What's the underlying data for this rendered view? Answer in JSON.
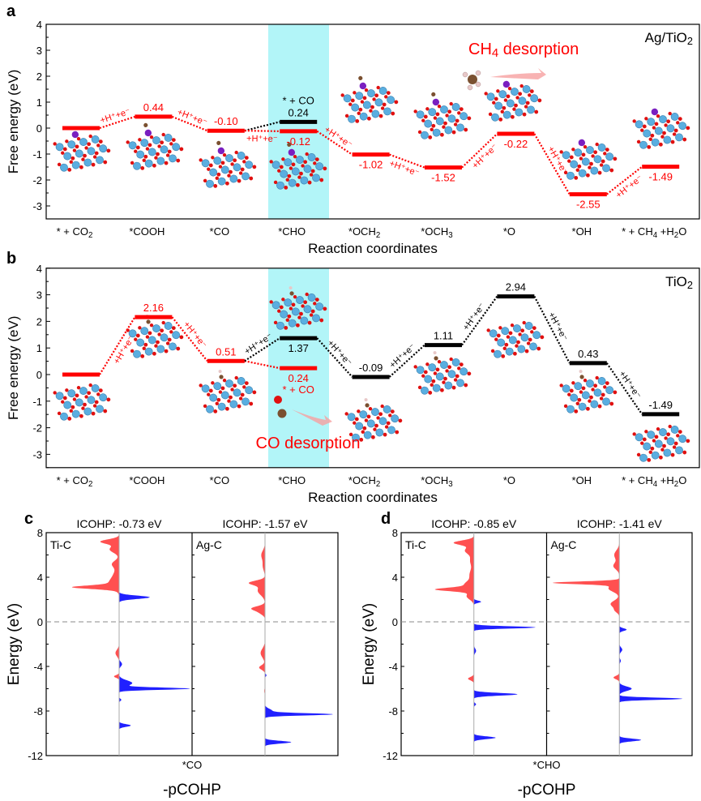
{
  "colors": {
    "red": "#ff0000",
    "black": "#000000",
    "band": "#b2f5f8",
    "bonding": "#2020ff",
    "antibonding": "#ff5050",
    "atom_ti": "#5aaee0",
    "atom_o": "#e01010",
    "atom_ag": "#7a1fc0",
    "atom_c": "#7a5030",
    "atom_h": "#e8c8c8"
  },
  "chart_data": [
    {
      "type": "line",
      "panel": "a",
      "title": "Ag/TiO2",
      "xlabel": "Reaction coordinates",
      "ylabel": "Free energy (eV)",
      "ylim": [
        -3.5,
        4
      ],
      "yticks": [
        4,
        3,
        2,
        1,
        0,
        -1,
        -2,
        -3
      ],
      "categories": [
        "* + CO2",
        "*COOH",
        "*CO",
        "*CHO",
        "*OCH2",
        "*OCH3",
        "*O",
        "*OH",
        "* + CH4 +H2O"
      ],
      "highlight_category": 3,
      "levels": [
        {
          "cat": 0,
          "value": 0,
          "label": "",
          "color": "red",
          "pos": "above"
        },
        {
          "cat": 1,
          "value": 0.44,
          "label": "0.44",
          "color": "red",
          "pos": "above"
        },
        {
          "cat": 2,
          "value": -0.1,
          "label": "-0.10",
          "color": "red",
          "pos": "above"
        },
        {
          "cat": 3,
          "value": 0.24,
          "label": "0.24",
          "color": "black",
          "pos": "above",
          "extra": "* + CO"
        },
        {
          "cat": 3,
          "value": -0.12,
          "label": "-0.12",
          "color": "red",
          "pos": "below"
        },
        {
          "cat": 4,
          "value": -1.02,
          "label": "-1.02",
          "color": "red",
          "pos": "below"
        },
        {
          "cat": 5,
          "value": -1.52,
          "label": "-1.52",
          "color": "red",
          "pos": "below"
        },
        {
          "cat": 6,
          "value": -0.22,
          "label": "-0.22",
          "color": "red",
          "pos": "below"
        },
        {
          "cat": 7,
          "value": -2.55,
          "label": "-2.55",
          "color": "red",
          "pos": "below"
        },
        {
          "cat": 8,
          "value": -1.49,
          "label": "-1.49",
          "color": "red",
          "pos": "below"
        }
      ],
      "steps": [
        {
          "from": [
            0,
            0
          ],
          "to": [
            1,
            0.44
          ],
          "color": "red",
          "label": "+H⁺+e⁻",
          "side": "above"
        },
        {
          "from": [
            1,
            0.44
          ],
          "to": [
            2,
            -0.1
          ],
          "color": "red",
          "label": "+H⁺+e⁻",
          "side": "above"
        },
        {
          "from": [
            2,
            -0.1
          ],
          "to": [
            3,
            0.24
          ],
          "color": "black",
          "label": "",
          "side": "above"
        },
        {
          "from": [
            2,
            -0.1
          ],
          "to": [
            3,
            -0.12
          ],
          "color": "red",
          "label": "+H⁺+e⁻",
          "side": "below"
        },
        {
          "from": [
            3,
            -0.12
          ],
          "to": [
            4,
            -1.02
          ],
          "color": "red",
          "label": "+H⁺+e⁻",
          "side": "above"
        },
        {
          "from": [
            4,
            -1.02
          ],
          "to": [
            5,
            -1.52
          ],
          "color": "red",
          "label": "+H⁺+e⁻",
          "side": "below"
        },
        {
          "from": [
            5,
            -1.52
          ],
          "to": [
            6,
            -0.22
          ],
          "color": "red",
          "label": "+H⁺+e⁻",
          "side": "below"
        },
        {
          "from": [
            6,
            -0.22
          ],
          "to": [
            7,
            -2.55
          ],
          "color": "red",
          "label": "+H⁺+e⁻",
          "side": "above"
        },
        {
          "from": [
            7,
            -2.55
          ],
          "to": [
            8,
            -1.49
          ],
          "color": "red",
          "label": "+H⁺+e⁻",
          "side": "below"
        }
      ],
      "annotation": "CH4 desorption"
    },
    {
      "type": "line",
      "panel": "b",
      "title": "TiO2",
      "xlabel": "Reaction coordinates",
      "ylabel": "Free energy (eV)",
      "ylim": [
        -3.5,
        4
      ],
      "yticks": [
        4,
        3,
        2,
        1,
        0,
        -1,
        -2,
        -3
      ],
      "categories": [
        "* + CO2",
        "*COOH",
        "*CO",
        "*CHO",
        "*OCH2",
        "*OCH3",
        "*O",
        "*OH",
        "* + CH4 +H2O"
      ],
      "highlight_category": 3,
      "levels": [
        {
          "cat": 0,
          "value": 0,
          "label": "",
          "color": "red",
          "pos": "above"
        },
        {
          "cat": 1,
          "value": 2.16,
          "label": "2.16",
          "color": "red",
          "pos": "above"
        },
        {
          "cat": 2,
          "value": 0.51,
          "label": "0.51",
          "color": "red",
          "pos": "above"
        },
        {
          "cat": 3,
          "value": 0.24,
          "label": "0.24",
          "color": "red",
          "pos": "below",
          "extra": "* + CO"
        },
        {
          "cat": 3,
          "value": 1.37,
          "label": "1.37",
          "color": "black",
          "pos": "below"
        },
        {
          "cat": 4,
          "value": -0.09,
          "label": "-0.09",
          "color": "black",
          "pos": "above"
        },
        {
          "cat": 5,
          "value": 1.11,
          "label": "1.11",
          "color": "black",
          "pos": "above"
        },
        {
          "cat": 6,
          "value": 2.94,
          "label": "2.94",
          "color": "black",
          "pos": "above"
        },
        {
          "cat": 7,
          "value": 0.43,
          "label": "0.43",
          "color": "black",
          "pos": "above"
        },
        {
          "cat": 8,
          "value": -1.49,
          "label": "-1.49",
          "color": "black",
          "pos": "above"
        }
      ],
      "steps": [
        {
          "from": [
            0,
            0
          ],
          "to": [
            1,
            2.16
          ],
          "color": "red",
          "label": "+H⁺+e⁻",
          "side": "below"
        },
        {
          "from": [
            1,
            2.16
          ],
          "to": [
            2,
            0.51
          ],
          "color": "red",
          "label": "+H⁺+e⁻",
          "side": "above"
        },
        {
          "from": [
            2,
            0.51
          ],
          "to": [
            3,
            0.24
          ],
          "color": "red",
          "label": "",
          "side": "above"
        },
        {
          "from": [
            2,
            0.51
          ],
          "to": [
            3,
            1.37
          ],
          "color": "black",
          "label": "+H⁺+e⁻",
          "side": "above"
        },
        {
          "from": [
            3,
            1.37
          ],
          "to": [
            4,
            -0.09
          ],
          "color": "black",
          "label": "+H⁺+e⁻",
          "side": "above"
        },
        {
          "from": [
            4,
            -0.09
          ],
          "to": [
            5,
            1.11
          ],
          "color": "black",
          "label": "+H⁺+e⁻",
          "side": "above"
        },
        {
          "from": [
            5,
            1.11
          ],
          "to": [
            6,
            2.94
          ],
          "color": "black",
          "label": "+H⁺+e⁻",
          "side": "above"
        },
        {
          "from": [
            6,
            2.94
          ],
          "to": [
            7,
            0.43
          ],
          "color": "black",
          "label": "+H⁺+e⁻",
          "side": "above"
        },
        {
          "from": [
            7,
            0.43
          ],
          "to": [
            8,
            -1.49
          ],
          "color": "black",
          "label": "+H⁺+e⁻",
          "side": "above"
        }
      ],
      "annotation": "CO desorption"
    },
    {
      "type": "area",
      "panel": "c",
      "xlabel": "-pCOHP",
      "ylabel": "Energy (eV)",
      "ylim": [
        -12,
        8
      ],
      "yticks": [
        8,
        4,
        0,
        -4,
        -8,
        -12
      ],
      "fermi_level": 0,
      "adsorbate": "*CO",
      "subplots": [
        {
          "bond": "Ti-C",
          "icohp": "ICOHP: -0.73 eV",
          "antibonding_peaks": [
            [
              7.2,
              0.25,
              0.2
            ],
            [
              6.5,
              0.13,
              0.3
            ],
            [
              5.2,
              0.09,
              0.3
            ],
            [
              4.2,
              0.07,
              0.5
            ],
            [
              3.1,
              0.55,
              0.15
            ],
            [
              3.4,
              0.12,
              0.4
            ],
            [
              -2.8,
              0.05,
              0.3
            ],
            [
              -4.9,
              0.07,
              0.12
            ]
          ],
          "bonding_peaks": [
            [
              2.2,
              0.42,
              0.15
            ],
            [
              -3.8,
              0.04,
              0.2
            ],
            [
              -5.5,
              0.18,
              0.25
            ],
            [
              -6.0,
              0.95,
              0.1
            ],
            [
              -7.0,
              0.03,
              0.1
            ],
            [
              -9.3,
              0.16,
              0.12
            ]
          ]
        },
        {
          "bond": "Ag-C",
          "icohp": "ICOHP: -1.57 eV",
          "antibonding_peaks": [
            [
              6.0,
              0.05,
              0.4
            ],
            [
              5.0,
              0.03,
              0.4
            ],
            [
              3.5,
              0.2,
              0.2
            ],
            [
              2.8,
              0.1,
              0.4
            ],
            [
              1.2,
              0.18,
              0.2
            ],
            [
              0.8,
              0.06,
              0.2
            ],
            [
              -2.8,
              0.06,
              0.4
            ],
            [
              -4.1,
              0.08,
              0.2
            ],
            [
              -6.2,
              0.01,
              0.2
            ]
          ],
          "bonding_peaks": [
            [
              -4.8,
              0.02,
              0.1
            ],
            [
              -8.3,
              0.9,
              0.1
            ],
            [
              -8.0,
              0.1,
              0.2
            ],
            [
              -10.8,
              0.36,
              0.12
            ]
          ]
        }
      ]
    },
    {
      "type": "area",
      "panel": "d",
      "xlabel": "-pCOHP",
      "ylabel": "Energy (eV)",
      "ylim": [
        -12,
        8
      ],
      "yticks": [
        8,
        4,
        0,
        -4,
        -8,
        -12
      ],
      "fermi_level": 0,
      "adsorbate": "*CHO",
      "subplots": [
        {
          "bond": "Ti-C",
          "icohp": "ICOHP: -0.85 eV",
          "antibonding_peaks": [
            [
              7.1,
              0.27,
              0.2
            ],
            [
              6.4,
              0.12,
              0.3
            ],
            [
              5.5,
              0.05,
              0.4
            ],
            [
              4.2,
              0.06,
              0.5
            ],
            [
              2.9,
              0.47,
              0.15
            ],
            [
              3.3,
              0.12,
              0.3
            ],
            [
              2.3,
              0.1,
              0.3
            ],
            [
              -5.1,
              0.08,
              0.15
            ]
          ],
          "bonding_peaks": [
            [
              1.8,
              0.1,
              0.1
            ],
            [
              -0.5,
              0.85,
              0.1
            ],
            [
              -2.6,
              0.03,
              0.2
            ],
            [
              -6.5,
              0.6,
              0.12
            ],
            [
              -7.4,
              0.03,
              0.1
            ],
            [
              -10.4,
              0.3,
              0.12
            ]
          ]
        },
        {
          "bond": "Ag-C",
          "icohp": "ICOHP: -1.41 eV",
          "antibonding_peaks": [
            [
              6.0,
              0.07,
              0.4
            ],
            [
              5.0,
              0.08,
              0.3
            ],
            [
              3.5,
              0.88,
              0.12
            ],
            [
              3.0,
              0.15,
              0.3
            ],
            [
              1.6,
              0.12,
              0.3
            ],
            [
              1.0,
              0.05,
              0.2
            ],
            [
              -5.0,
              0.08,
              0.15
            ]
          ],
          "bonding_peaks": [
            [
              -0.7,
              0.1,
              0.12
            ],
            [
              -2.5,
              0.04,
              0.2
            ],
            [
              -3.5,
              0.02,
              0.15
            ],
            [
              -6.0,
              0.17,
              0.2
            ],
            [
              -6.9,
              0.87,
              0.1
            ],
            [
              -10.6,
              0.3,
              0.12
            ]
          ]
        }
      ]
    }
  ]
}
